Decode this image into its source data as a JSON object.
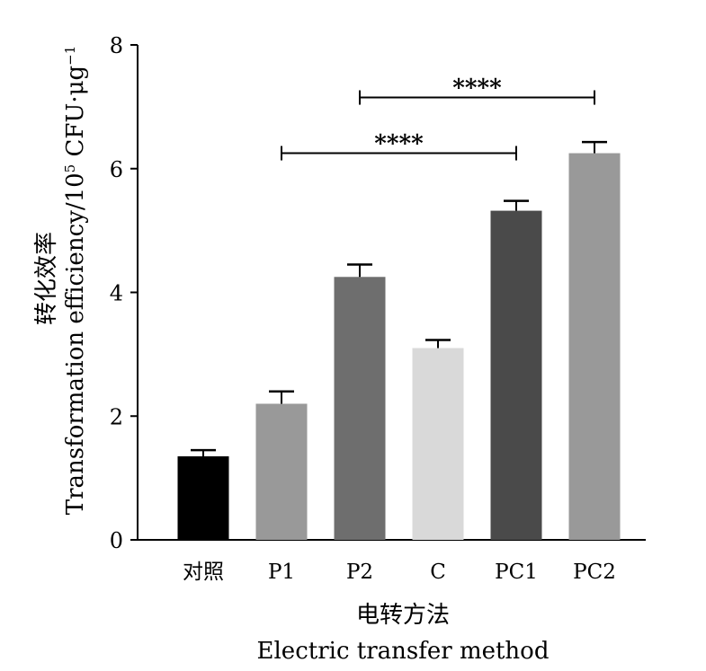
{
  "chart_data": {
    "type": "bar",
    "title": "",
    "categories": [
      "对照",
      "P1",
      "P2",
      "C",
      "PC1",
      "PC2"
    ],
    "values": [
      1.35,
      2.2,
      4.25,
      3.1,
      5.32,
      6.25
    ],
    "errors": [
      0.1,
      0.2,
      0.2,
      0.13,
      0.16,
      0.18
    ],
    "colors": [
      "#000000",
      "#999999",
      "#6e6e6e",
      "#d9d9d9",
      "#4a4a4a",
      "#999999"
    ],
    "xlabel_zh": "电转方法",
    "xlabel_en": "Electric transfer method",
    "ylabel_zh": "转化效率",
    "ylabel_en": "Transformation efficiency/10",
    "ylabel_sup": "5",
    "ylabel_unit": " CFU·μg",
    "ylabel_unit_sup": "−1",
    "ylim": [
      0,
      8
    ],
    "yticks": [
      "0",
      "2",
      "4",
      "6",
      "8"
    ],
    "significance": [
      {
        "from": "P1",
        "to": "PC1",
        "label": "****",
        "level": 6.25
      },
      {
        "from": "P2",
        "to": "PC2",
        "label": "****",
        "level": 7.15
      }
    ],
    "grid": false,
    "legend": "none"
  }
}
